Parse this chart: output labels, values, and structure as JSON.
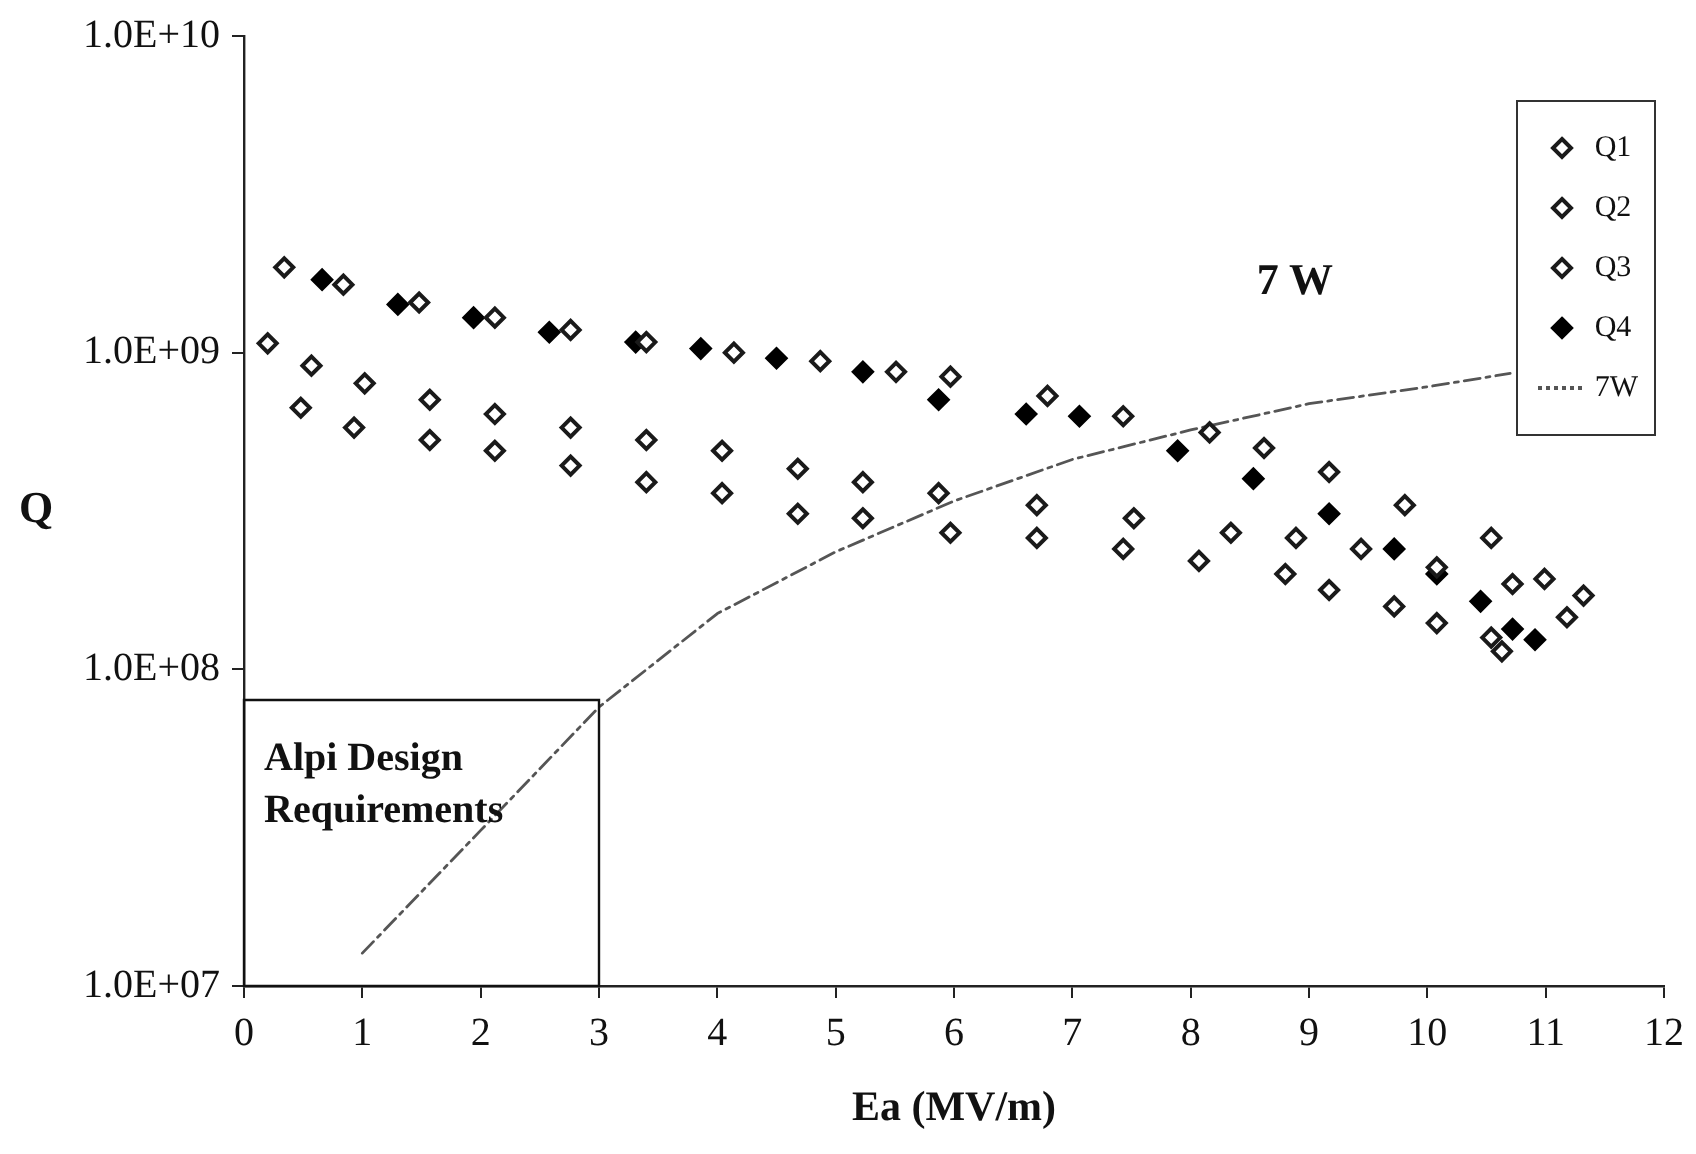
{
  "chart_data": {
    "type": "scatter",
    "xlabel": "Ea (MV/m)",
    "ylabel": "Q",
    "xlim": [
      0,
      12
    ],
    "xticks": [
      0,
      1,
      2,
      3,
      4,
      5,
      6,
      7,
      8,
      9,
      10,
      11,
      12
    ],
    "ylim": [
      10000000.0,
      10000000000.0
    ],
    "yticks": [
      {
        "value": 10000000.0,
        "label": "1.0E+07"
      },
      {
        "value": 100000000.0,
        "label": "1.0E+08"
      },
      {
        "value": 1000000000.0,
        "label": "1.0E+09"
      },
      {
        "value": 10000000000.0,
        "label": "1.0E+10"
      }
    ],
    "log": "y",
    "grid": false,
    "legend": "top right",
    "marker": "diamond",
    "series": [
      {
        "name": "Q1",
        "color": "#1a1a1a",
        "x": [
          0.2,
          0.57,
          1.02,
          1.57,
          2.12,
          2.76,
          3.4,
          4.04,
          4.68,
          5.23,
          5.87,
          6.7,
          7.52,
          8.34,
          8.89,
          9.44,
          10.08,
          10.72,
          11.18
        ],
        "values": [
          1070000000.0,
          910000000.0,
          800000000.0,
          710000000.0,
          640000000.0,
          580000000.0,
          530000000.0,
          490000000.0,
          430000000.0,
          390000000.0,
          360000000.0,
          330000000.0,
          300000000.0,
          270000000.0,
          260000000.0,
          240000000.0,
          210000000.0,
          186000000.0,
          146000000.0
        ]
      },
      {
        "name": "Q2",
        "color": "#1a1a1a",
        "x": [
          0.48,
          0.93,
          1.57,
          2.12,
          2.76,
          3.4,
          4.04,
          4.68,
          5.23,
          5.97,
          6.7,
          7.43,
          8.07,
          8.8,
          9.17,
          9.72,
          10.08,
          10.54,
          10.63
        ],
        "values": [
          670000000.0,
          580000000.0,
          530000000.0,
          490000000.0,
          440000000.0,
          390000000.0,
          360000000.0,
          310000000.0,
          300000000.0,
          270000000.0,
          260000000.0,
          240000000.0,
          220000000.0,
          200000000.0,
          178000000.0,
          158000000.0,
          140000000.0,
          126000000.0,
          114000000.0
        ]
      },
      {
        "name": "Q3",
        "color": "#1a1a1a",
        "x": [
          0.34,
          0.84,
          1.48,
          2.12,
          2.76,
          3.4,
          4.14,
          4.87,
          5.51,
          5.97,
          6.79,
          7.43,
          8.16,
          8.62,
          9.17,
          9.81,
          10.54,
          10.99,
          11.32
        ],
        "values": [
          1860000000.0,
          1640000000.0,
          1440000000.0,
          1290000000.0,
          1180000000.0,
          1080000000.0,
          1000000000.0,
          940000000.0,
          870000000.0,
          840000000.0,
          730000000.0,
          630000000.0,
          560000000.0,
          500000000.0,
          420000000.0,
          330000000.0,
          260000000.0,
          193000000.0,
          171000000.0
        ]
      },
      {
        "name": "Q4",
        "color": "#000000",
        "x": [
          0.66,
          1.3,
          1.94,
          2.58,
          3.31,
          3.86,
          4.5,
          5.23,
          5.87,
          6.61,
          7.06,
          7.89,
          8.53,
          9.17,
          9.72,
          10.08,
          10.45,
          10.72,
          10.91
        ],
        "values": [
          1700000000.0,
          1420000000.0,
          1290000000.0,
          1160000000.0,
          1080000000.0,
          1030000000.0,
          960000000.0,
          870000000.0,
          710000000.0,
          640000000.0,
          630000000.0,
          490000000.0,
          400000000.0,
          310000000.0,
          240000000.0,
          200000000.0,
          164000000.0,
          134000000.0,
          124000000.0
        ]
      },
      {
        "name": "7W",
        "type": "line",
        "color": "#555555",
        "marker": "none",
        "line_style": "dashed",
        "x": [
          1,
          2,
          3,
          4,
          5,
          6,
          7,
          8,
          9,
          10,
          10.7
        ],
        "values": [
          12700000.0,
          31000000.0,
          76000000.0,
          150000000.0,
          235000000.0,
          340000000.0,
          460000000.0,
          570000000.0,
          690000000.0,
          780000000.0,
          860000000.0
        ]
      }
    ],
    "annotations": [
      "7 W",
      {
        "text": "Alpi Design Requirements",
        "x": 3,
        "y": 80000000.0
      }
    ]
  }
}
